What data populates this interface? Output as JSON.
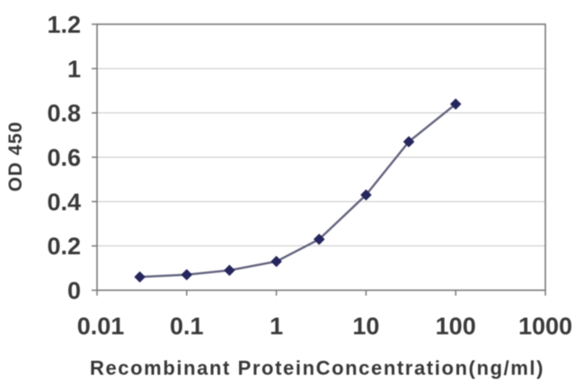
{
  "chart_data": {
    "type": "line",
    "title": "",
    "xlabel": "Recombinant ProteinConcentration(ng/ml)",
    "ylabel": "OD 450",
    "x_scale": "log",
    "xlim": [
      0.01,
      1000
    ],
    "ylim": [
      0,
      1.2
    ],
    "x_ticks": [
      "0.01",
      "0.1",
      "1",
      "10",
      "100",
      "1000"
    ],
    "x_tick_values": [
      0.01,
      0.1,
      1,
      10,
      100,
      1000
    ],
    "y_ticks": [
      "0",
      "0.2",
      "0.4",
      "0.6",
      "0.8",
      "1",
      "1.2"
    ],
    "y_tick_values": [
      0,
      0.2,
      0.4,
      0.6,
      0.8,
      1,
      1.2
    ],
    "grid": "horizontal",
    "legend": "none",
    "series": [
      {
        "marker": "diamond",
        "x": [
          0.03,
          0.1,
          0.3,
          1,
          3,
          10,
          30,
          100
        ],
        "y": [
          0.06,
          0.07,
          0.09,
          0.13,
          0.23,
          0.43,
          0.67,
          0.84
        ]
      }
    ],
    "colors": {
      "marker": "#26265e",
      "line": "#63637f",
      "grid": "#c6c6c6",
      "frame": "#7a7a7a",
      "text": "#3a3a3a"
    }
  }
}
